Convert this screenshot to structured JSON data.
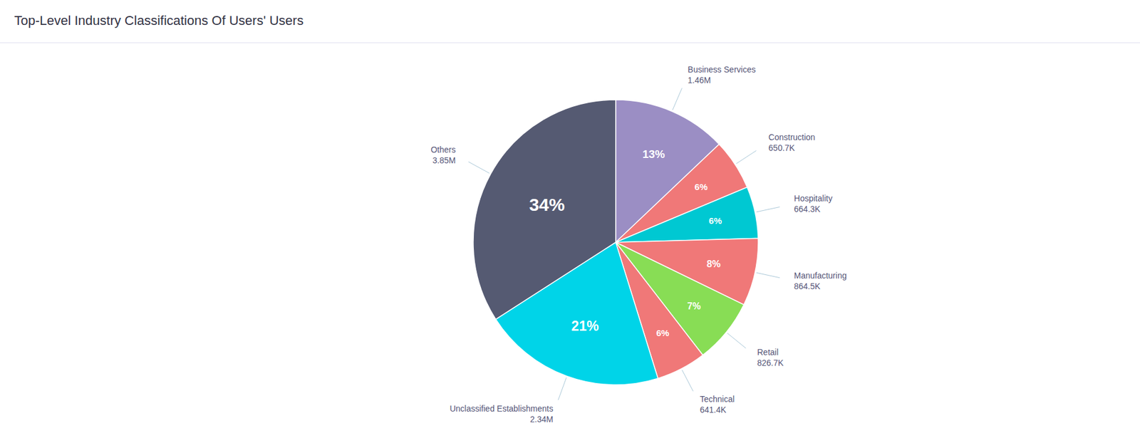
{
  "chart_data": {
    "type": "pie",
    "title": "Top-Level Industry Classifications Of Users' Users",
    "categories": [
      "Business Services",
      "Construction",
      "Hospitality",
      "Manufacturing",
      "Retail",
      "Technical",
      "Unclassified Establishments",
      "Others"
    ],
    "values": [
      1460,
      650.7,
      664.3,
      864.5,
      826.7,
      641.4,
      2340,
      3850
    ],
    "value_labels": [
      "1.46M",
      "650.7K",
      "664.3K",
      "864.5K",
      "826.7K",
      "641.4K",
      "2.34M",
      "3.85M"
    ],
    "shares": [
      13,
      6,
      6,
      8,
      7,
      6,
      21,
      34
    ],
    "share_labels": [
      "13%",
      "6%",
      "6%",
      "8%",
      "7%",
      "6%",
      "21%",
      "34%"
    ],
    "colors": [
      "#9b8ec4",
      "#f07878",
      "#00c8d2",
      "#f07878",
      "#88dd55",
      "#f07878",
      "#00d4e8",
      "#555a72"
    ]
  }
}
